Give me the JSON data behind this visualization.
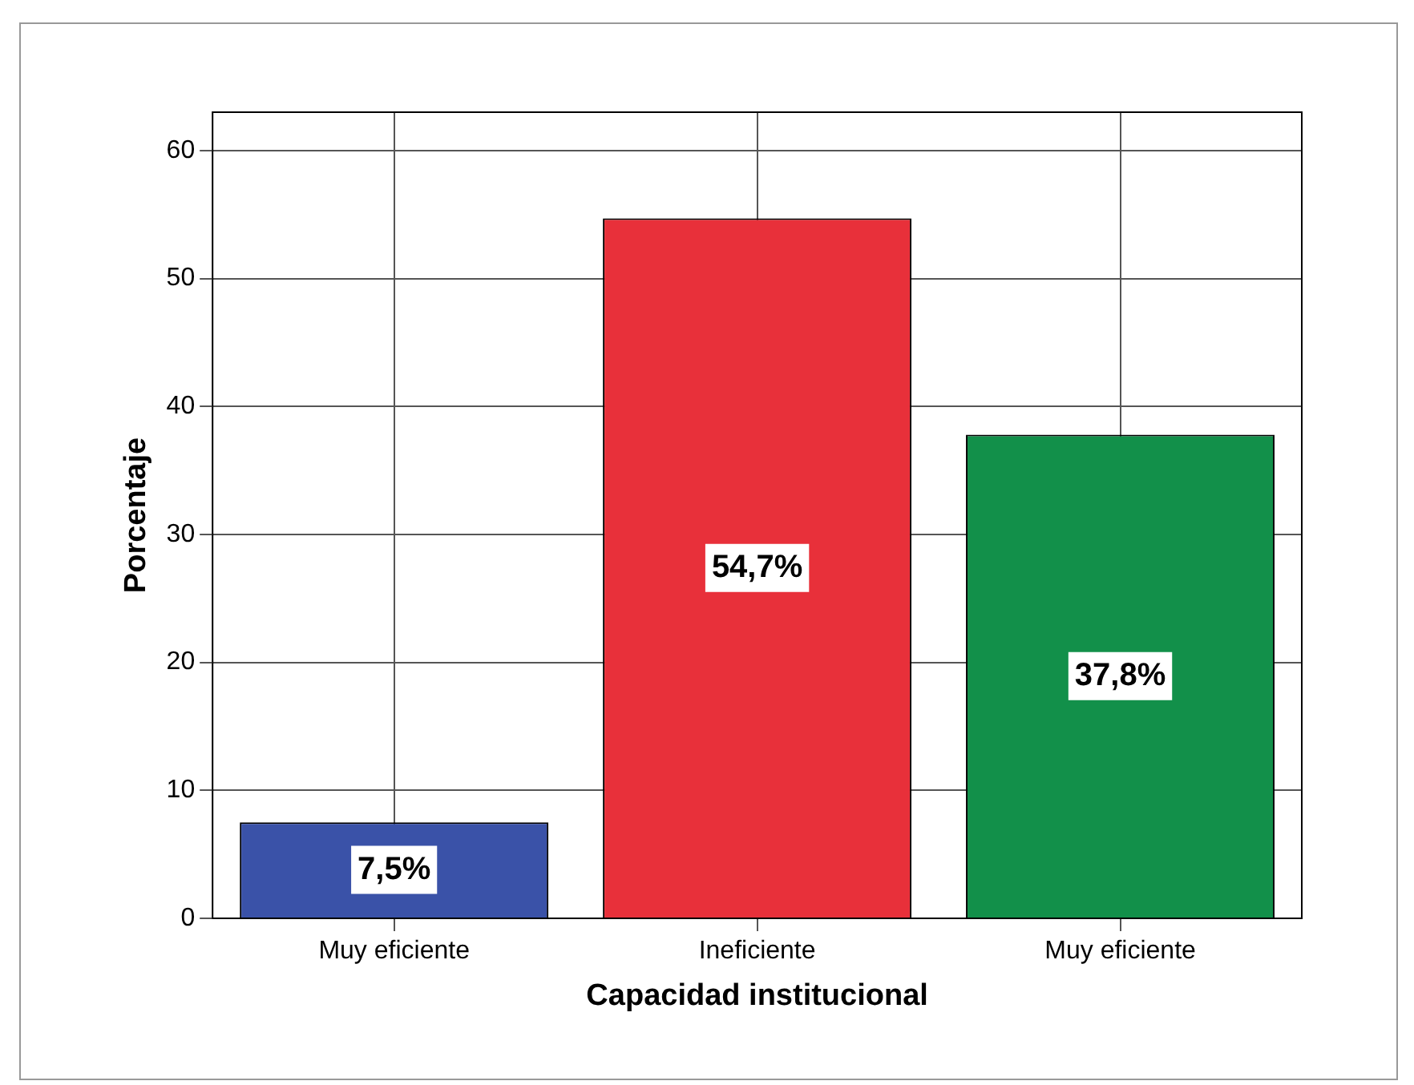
{
  "chart_data": {
    "type": "bar",
    "xlabel": "Capacidad institucional",
    "ylabel": "Porcentaje",
    "categories": [
      "Muy eficiente",
      "Ineficiente",
      "Muy eficiente"
    ],
    "values": [
      7.5,
      54.7,
      37.8
    ],
    "colors": [
      "#3a52a8",
      "#e8303a",
      "#12904a"
    ],
    "value_labels": [
      "7,5%",
      "54,7%",
      "37,8%"
    ],
    "ylim": [
      0,
      63
    ],
    "yticks": [
      0,
      10,
      20,
      30,
      40,
      50,
      60
    ],
    "grid": true,
    "legend": false
  }
}
